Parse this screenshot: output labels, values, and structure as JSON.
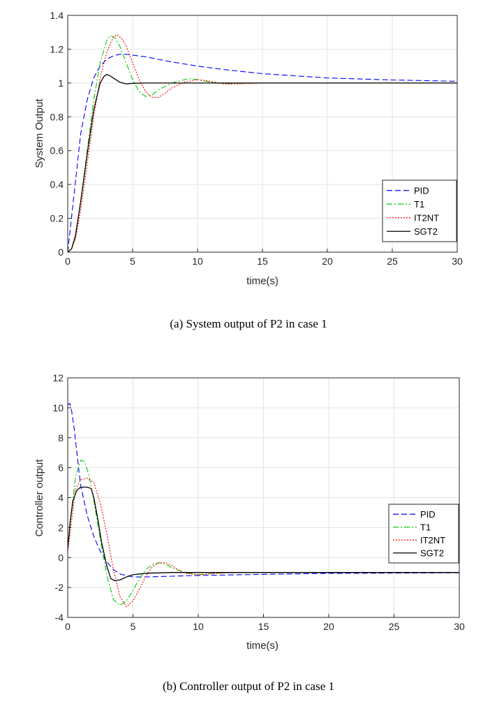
{
  "chart_data": [
    {
      "type": "line",
      "caption": "(a) System output of P2 in case 1",
      "xlabel": "time(s)",
      "ylabel": "System Output",
      "xlim": [
        0,
        30
      ],
      "ylim": [
        0,
        1.4
      ],
      "xticks": [
        0,
        5,
        10,
        15,
        20,
        25,
        30
      ],
      "yticks": [
        0,
        0.2,
        0.4,
        0.6,
        0.8,
        1,
        1.2,
        1.4
      ],
      "grid": true,
      "legend_position": "bottom-right",
      "series": [
        {
          "name": "PID",
          "color": "#0000ff",
          "style": "dashed",
          "x": [
            0,
            0.5,
            1,
            1.5,
            2,
            2.5,
            3,
            3.5,
            4,
            4.5,
            5,
            6,
            7,
            8,
            10,
            12,
            15,
            20,
            25,
            30
          ],
          "y": [
            0,
            0.35,
            0.7,
            0.9,
            1.03,
            1.1,
            1.14,
            1.16,
            1.17,
            1.17,
            1.165,
            1.155,
            1.14,
            1.125,
            1.1,
            1.08,
            1.055,
            1.03,
            1.018,
            1.01
          ]
        },
        {
          "name": "T1",
          "color": "#00cc00",
          "style": "dashdot",
          "x": [
            0,
            0.3,
            0.6,
            1,
            1.5,
            2,
            2.5,
            3,
            3.3,
            3.6,
            4,
            4.5,
            5,
            5.5,
            6,
            6.5,
            7,
            8,
            9,
            9.5,
            10,
            11,
            12,
            13,
            15,
            20,
            30
          ],
          "y": [
            0,
            0.02,
            0.1,
            0.3,
            0.6,
            0.9,
            1.12,
            1.25,
            1.28,
            1.27,
            1.22,
            1.12,
            1.02,
            0.95,
            0.92,
            0.93,
            0.96,
            1.0,
            1.02,
            1.025,
            1.02,
            1.005,
            0.995,
            0.998,
            1.0,
            1.0,
            1.0
          ]
        },
        {
          "name": "IT2NT",
          "color": "#ff0000",
          "style": "dotted",
          "x": [
            0,
            0.3,
            0.6,
            1,
            1.5,
            2,
            2.5,
            3,
            3.5,
            3.8,
            4.2,
            4.5,
            5,
            5.5,
            6,
            6.5,
            7,
            7.5,
            8,
            9,
            10,
            11,
            12,
            13,
            15,
            20,
            30
          ],
          "y": [
            0,
            0.02,
            0.08,
            0.25,
            0.52,
            0.8,
            1.03,
            1.18,
            1.27,
            1.285,
            1.26,
            1.22,
            1.12,
            1.02,
            0.95,
            0.915,
            0.915,
            0.94,
            0.97,
            1.005,
            1.02,
            1.01,
            0.995,
            0.995,
            1.0,
            1.0,
            1.0
          ]
        },
        {
          "name": "SGT2",
          "color": "#000000",
          "style": "solid",
          "x": [
            0,
            0.3,
            0.6,
            1,
            1.5,
            2,
            2.5,
            2.8,
            3,
            3.2,
            3.5,
            4,
            4.5,
            5,
            6,
            7,
            10,
            15,
            20,
            30
          ],
          "y": [
            0,
            0.02,
            0.1,
            0.3,
            0.58,
            0.84,
            1.0,
            1.04,
            1.05,
            1.045,
            1.03,
            1.005,
            0.995,
            0.998,
            1.0,
            1.0,
            1.0,
            1.0,
            1.0,
            1.0
          ]
        }
      ]
    },
    {
      "type": "line",
      "caption": "(b) Controller output of P2 in case 1",
      "xlabel": "time(s)",
      "ylabel": "Controller output",
      "xlim": [
        0,
        30
      ],
      "ylim": [
        -4,
        12
      ],
      "xticks": [
        0,
        5,
        10,
        15,
        20,
        25,
        30
      ],
      "yticks": [
        -4,
        -2,
        0,
        2,
        4,
        6,
        8,
        10,
        12
      ],
      "grid": true,
      "legend_position": "middle-right",
      "series": [
        {
          "name": "PID",
          "color": "#0000ff",
          "style": "dashed",
          "x": [
            0,
            0.15,
            0.3,
            0.5,
            0.8,
            1,
            1.5,
            2,
            2.5,
            3,
            3.5,
            4,
            5,
            6,
            8,
            10,
            15,
            20,
            30
          ],
          "y": [
            10.2,
            10.3,
            9.8,
            8.6,
            6.2,
            4.8,
            2.8,
            1.4,
            0.4,
            -0.3,
            -0.8,
            -1.1,
            -1.3,
            -1.3,
            -1.25,
            -1.2,
            -1.12,
            -1.06,
            -1.02
          ]
        },
        {
          "name": "T1",
          "color": "#00cc00",
          "style": "dashdot",
          "x": [
            0,
            0.3,
            0.6,
            1,
            1.3,
            1.6,
            2,
            2.5,
            3,
            3.5,
            4,
            4.5,
            5,
            5.5,
            6,
            6.5,
            7,
            7.5,
            8,
            9,
            10,
            12,
            15,
            30
          ],
          "y": [
            0.5,
            3.2,
            5.4,
            6.5,
            6.4,
            5.6,
            3.8,
            1.2,
            -1.2,
            -2.8,
            -3.2,
            -2.9,
            -2.2,
            -1.4,
            -0.8,
            -0.45,
            -0.35,
            -0.45,
            -0.7,
            -1.0,
            -1.15,
            -1.02,
            -1.0,
            -1.0
          ]
        },
        {
          "name": "IT2NT",
          "color": "#ff0000",
          "style": "dotted",
          "x": [
            0,
            0.3,
            0.6,
            1,
            1.5,
            2,
            2.5,
            3,
            3.5,
            4,
            4.5,
            5,
            5.5,
            6,
            6.5,
            7,
            7.5,
            8,
            8.5,
            9,
            10,
            12,
            15,
            30
          ],
          "y": [
            0.3,
            2.5,
            4.6,
            5.2,
            5.3,
            5.0,
            3.6,
            1.6,
            -0.8,
            -2.6,
            -3.3,
            -2.9,
            -2.1,
            -1.2,
            -0.6,
            -0.35,
            -0.35,
            -0.55,
            -0.85,
            -1.05,
            -1.15,
            -1.02,
            -1.0,
            -1.0
          ]
        },
        {
          "name": "SGT2",
          "color": "#000000",
          "style": "solid",
          "x": [
            0,
            0.2,
            0.4,
            0.7,
            1,
            1.5,
            1.8,
            2,
            2.3,
            2.6,
            3,
            3.3,
            3.6,
            4,
            4.5,
            5,
            6,
            8,
            10,
            15,
            30
          ],
          "y": [
            0.6,
            2.5,
            3.8,
            4.5,
            4.7,
            4.7,
            4.6,
            4.0,
            2.6,
            1.0,
            -0.6,
            -1.4,
            -1.55,
            -1.5,
            -1.3,
            -1.15,
            -1.05,
            -1.0,
            -1.0,
            -1.0,
            -1.0
          ]
        }
      ]
    }
  ]
}
